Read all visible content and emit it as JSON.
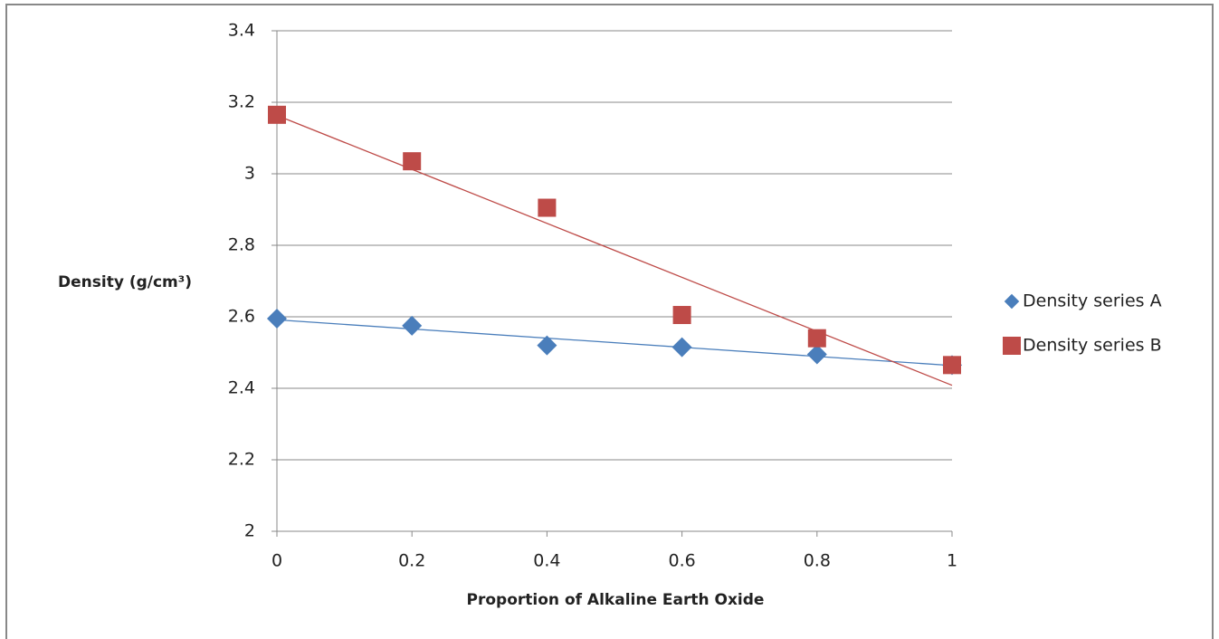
{
  "chart_data": {
    "type": "scatter",
    "x_label": "Proportion of Alkaline Earth Oxide",
    "y_label": "Density (g/cm³)",
    "x": [
      0,
      0.2,
      0.4,
      0.6,
      0.8,
      1
    ],
    "series": [
      {
        "name": "Density series A",
        "color": "#4a7ebb",
        "marker": "diamond",
        "trendline": "linear",
        "values": [
          2.595,
          2.575,
          2.52,
          2.515,
          2.495,
          2.465
        ]
      },
      {
        "name": "Density series B",
        "color": "#be4b48",
        "marker": "square",
        "trendline": "linear",
        "values": [
          3.165,
          3.035,
          2.905,
          2.605,
          2.54,
          2.465
        ]
      }
    ],
    "xlim": [
      0,
      1
    ],
    "xticks": [
      0,
      0.2,
      0.4,
      0.6,
      0.8,
      1
    ],
    "ylim": [
      2,
      3.4
    ],
    "yticks": [
      2,
      2.2,
      2.4,
      2.6,
      2.8,
      3,
      3.2,
      3.4
    ],
    "grid": true,
    "legend": "right"
  }
}
